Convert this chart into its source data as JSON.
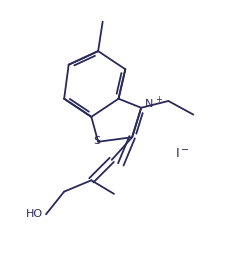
{
  "bg_color": "#ffffff",
  "line_color": "#2a2a5a",
  "figsize": [
    2.28,
    2.79
  ],
  "dpi": 100,
  "xlim": [
    0,
    10
  ],
  "ylim": [
    0,
    12.2
  ]
}
